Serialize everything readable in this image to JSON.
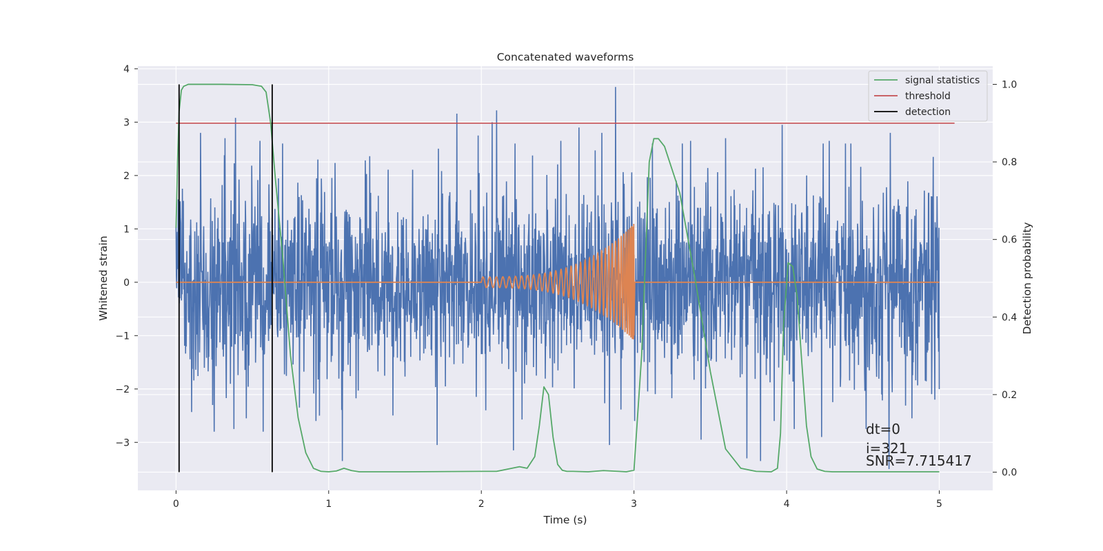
{
  "chart_data": {
    "type": "line",
    "title": "Concatenated waveforms",
    "xlabel": "Time (s)",
    "ylabel": "Whitened strain",
    "y2label": "Detection probability",
    "xlim": [
      -0.25,
      5.35
    ],
    "ylim": [
      -3.9,
      4.05
    ],
    "y2lim": [
      -0.047,
      1.047
    ],
    "x_ticks": [
      0,
      1,
      2,
      3,
      4,
      5
    ],
    "x_tick_labels": [
      "0",
      "1",
      "2",
      "3",
      "4",
      "5"
    ],
    "y_ticks": [
      4,
      3,
      2,
      1,
      0,
      -1,
      -2,
      -3
    ],
    "y_tick_labels": [
      "4",
      "3",
      "2",
      "1",
      "0",
      "−1",
      "−2",
      "−3"
    ],
    "y2_ticks": [
      1.0,
      0.8,
      0.6,
      0.4,
      0.2,
      0.0
    ],
    "y2_tick_labels": [
      "1.0",
      "0.8",
      "0.6",
      "0.4",
      "0.2",
      "0.0"
    ],
    "grid": true,
    "legend_position": "top-right",
    "legend": [
      {
        "label": "signal statistics",
        "color": "#55a868"
      },
      {
        "label": "threshold",
        "color": "#c44e52"
      },
      {
        "label": "detection",
        "color": "#000000"
      }
    ],
    "colors": {
      "strain": "#4c72b0",
      "injected_waveform": "#dd8452",
      "signal_statistics": "#55a868",
      "threshold": "#c44e52",
      "detection": "#000000",
      "plot_background": "#eaeaf2",
      "grid": "#ffffff"
    },
    "strain_series": {
      "x_range": [
        0,
        5
      ],
      "typical_amplitude": 1.2,
      "peaks": [
        [
          0.16,
          2.8
        ],
        [
          0.32,
          2.7
        ],
        [
          0.39,
          3.08
        ],
        [
          0.55,
          2.65
        ],
        [
          0.93,
          2.3
        ],
        [
          1.84,
          3.16
        ],
        [
          1.98,
          2.75
        ],
        [
          2.07,
          3.0
        ],
        [
          2.1,
          3.22
        ],
        [
          2.22,
          2.6
        ],
        [
          2.52,
          2.65
        ],
        [
          2.64,
          2.9
        ],
        [
          2.79,
          2.8
        ],
        [
          2.88,
          3.66
        ],
        [
          3.12,
          2.6
        ],
        [
          3.37,
          2.65
        ],
        [
          3.6,
          2.7
        ],
        [
          3.97,
          2.95
        ],
        [
          4.28,
          2.65
        ],
        [
          4.42,
          2.6
        ],
        [
          4.68,
          2.8
        ],
        [
          4.96,
          2.35
        ]
      ],
      "troughs": [
        [
          0.24,
          -2.3
        ],
        [
          0.25,
          -2.8
        ],
        [
          0.38,
          -2.75
        ],
        [
          0.46,
          -2.55
        ],
        [
          0.57,
          -2.8
        ],
        [
          0.94,
          -2.5
        ],
        [
          1.09,
          -3.35
        ],
        [
          1.71,
          -3.05
        ],
        [
          2.03,
          -2.4
        ],
        [
          2.21,
          -3.15
        ],
        [
          2.84,
          -3.05
        ],
        [
          3.44,
          -2.95
        ],
        [
          3.74,
          -3.3
        ],
        [
          3.83,
          -3.35
        ],
        [
          4.05,
          -2.75
        ],
        [
          4.23,
          -2.9
        ],
        [
          4.52,
          -2.75
        ],
        [
          4.67,
          -3.5
        ],
        [
          4.82,
          -2.55
        ],
        [
          4.97,
          -2.2
        ]
      ]
    },
    "injected_waveform": {
      "x_range": [
        0,
        5
      ],
      "chirp_start": 2.0,
      "merger": 3.0,
      "peak_amplitude": 1.1
    },
    "signal_statistics": {
      "x": [
        0,
        0.01,
        0.02,
        0.035,
        0.05,
        0.08,
        0.12,
        0.3,
        0.5,
        0.56,
        0.59,
        0.62,
        0.65,
        0.7,
        0.75,
        0.8,
        0.85,
        0.9,
        0.95,
        1.0,
        1.05,
        1.1,
        1.15,
        1.2,
        1.5,
        2.0,
        2.1,
        2.2,
        2.25,
        2.3,
        2.35,
        2.38,
        2.41,
        2.44,
        2.47,
        2.5,
        2.53,
        2.56,
        2.6,
        2.7,
        2.8,
        2.9,
        2.95,
        3.0,
        3.05,
        3.1,
        3.13,
        3.16,
        3.2,
        3.3,
        3.4,
        3.5,
        3.6,
        3.7,
        3.8,
        3.9,
        3.94,
        3.96,
        3.98,
        4.01,
        4.04,
        4.07,
        4.1,
        4.13,
        4.16,
        4.2,
        4.25,
        4.3,
        4.6,
        5.0
      ],
      "y": [
        0.63,
        0.8,
        0.93,
        0.985,
        0.995,
        1.0,
        1.0,
        1.0,
        0.999,
        0.995,
        0.98,
        0.9,
        0.76,
        0.55,
        0.3,
        0.14,
        0.05,
        0.01,
        0.002,
        0.001,
        0.003,
        0.01,
        0.004,
        0.001,
        0.001,
        0.002,
        0.002,
        0.01,
        0.014,
        0.01,
        0.04,
        0.12,
        0.22,
        0.2,
        0.09,
        0.02,
        0.005,
        0.002,
        0.002,
        0.001,
        0.004,
        0.002,
        0.001,
        0.005,
        0.3,
        0.8,
        0.86,
        0.86,
        0.84,
        0.72,
        0.5,
        0.26,
        0.06,
        0.01,
        0.002,
        0.001,
        0.01,
        0.1,
        0.38,
        0.54,
        0.53,
        0.45,
        0.28,
        0.12,
        0.04,
        0.008,
        0.002,
        0.001,
        0.001,
        0.001
      ]
    },
    "threshold": {
      "x": [
        0,
        5.1
      ],
      "y": [
        0.9,
        0.9
      ]
    },
    "detection_times": [
      0.02,
      0.63
    ],
    "annotations": [
      "dt=0",
      "i=321",
      "SNR=7.715417"
    ]
  }
}
